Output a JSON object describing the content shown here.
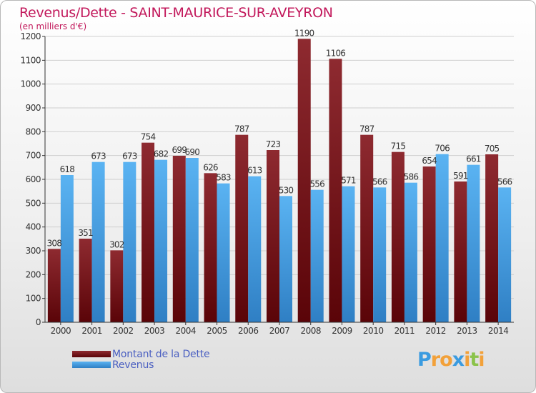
{
  "header": {
    "title": "Revenus/Dette - SAINT-MAURICE-SUR-AVEYRON",
    "subtitle": "(en milliers d'€)"
  },
  "legend": {
    "items": [
      {
        "label": "Montant de la Dette",
        "color": "#7a1a1e"
      },
      {
        "label": "Revenus",
        "color": "#4aa3e8"
      }
    ]
  },
  "logo": {
    "letters": [
      "P",
      "r",
      "o",
      "x",
      "i",
      "t",
      "i"
    ]
  },
  "chart_data": {
    "type": "bar",
    "title": "Revenus/Dette - SAINT-MAURICE-SUR-AVEYRON",
    "ylabel": "(en milliers d'€)",
    "xlabel": "",
    "ylim": [
      0,
      1200
    ],
    "yticks": [
      0,
      100,
      200,
      300,
      400,
      500,
      600,
      700,
      800,
      900,
      1000,
      1100,
      1200
    ],
    "grid": true,
    "legend_position": "bottom-left",
    "categories": [
      "2000",
      "2001",
      "2002",
      "2003",
      "2004",
      "2005",
      "2006",
      "2007",
      "2008",
      "2009",
      "2010",
      "2011",
      "2012",
      "2013",
      "2014"
    ],
    "series": [
      {
        "name": "Montant de la Dette",
        "color": "#7a1a1e",
        "values": [
          308,
          351,
          302,
          754,
          699,
          626,
          787,
          723,
          1190,
          1106,
          787,
          715,
          654,
          591,
          705
        ]
      },
      {
        "name": "Revenus",
        "color": "#4aa3e8",
        "values": [
          618,
          673,
          673,
          682,
          690,
          583,
          613,
          530,
          556,
          571,
          566,
          586,
          706,
          661,
          566
        ]
      }
    ]
  }
}
